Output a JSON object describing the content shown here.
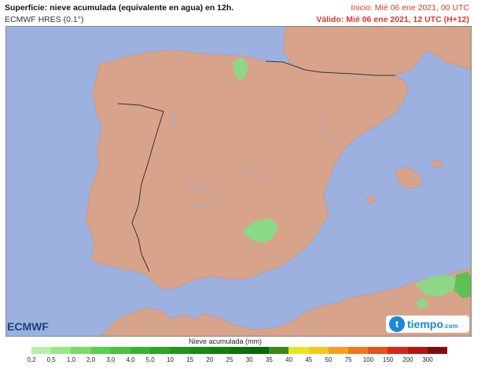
{
  "header": {
    "title": "Superficie: nieve acumulada (equivalente en agua) en 12h.",
    "model": "ECMWF HRES (0.1°)",
    "init": "Inicio: Mié 06 ene 2021, 00 UTC",
    "valid": "Válido: Mié 06 ene 2021, 12 UTC (H+12)"
  },
  "logos": {
    "left": "ECMWF",
    "right_icon": "t",
    "right_text": "tiempo",
    "right_suffix": ".com"
  },
  "legend": {
    "title": "Nieve acumulada (mm)",
    "ticks": [
      "0,2",
      "0,5",
      "1,0",
      "2,0",
      "3,0",
      "4,0",
      "5,0",
      "10",
      "15",
      "20",
      "25",
      "30",
      "35",
      "40",
      "45",
      "50",
      "75",
      "100",
      "150",
      "200",
      "300"
    ],
    "colors": [
      "#b8f0a8",
      "#98e888",
      "#78dc68",
      "#5acf4e",
      "#48c040",
      "#38b232",
      "#2ca428",
      "#20961e",
      "#188a16",
      "#127e10",
      "#0e720c",
      "#0a6608",
      "#3b8a1c",
      "#e6e61e",
      "#f5c81e",
      "#f5a01e",
      "#f0781e",
      "#e8501e",
      "#d8281a",
      "#b81414",
      "#8c0c10"
    ]
  },
  "map": {
    "land_color": "#d8a38b",
    "sea_color": "#9cb1e0",
    "snow_color": "#80e086"
  }
}
